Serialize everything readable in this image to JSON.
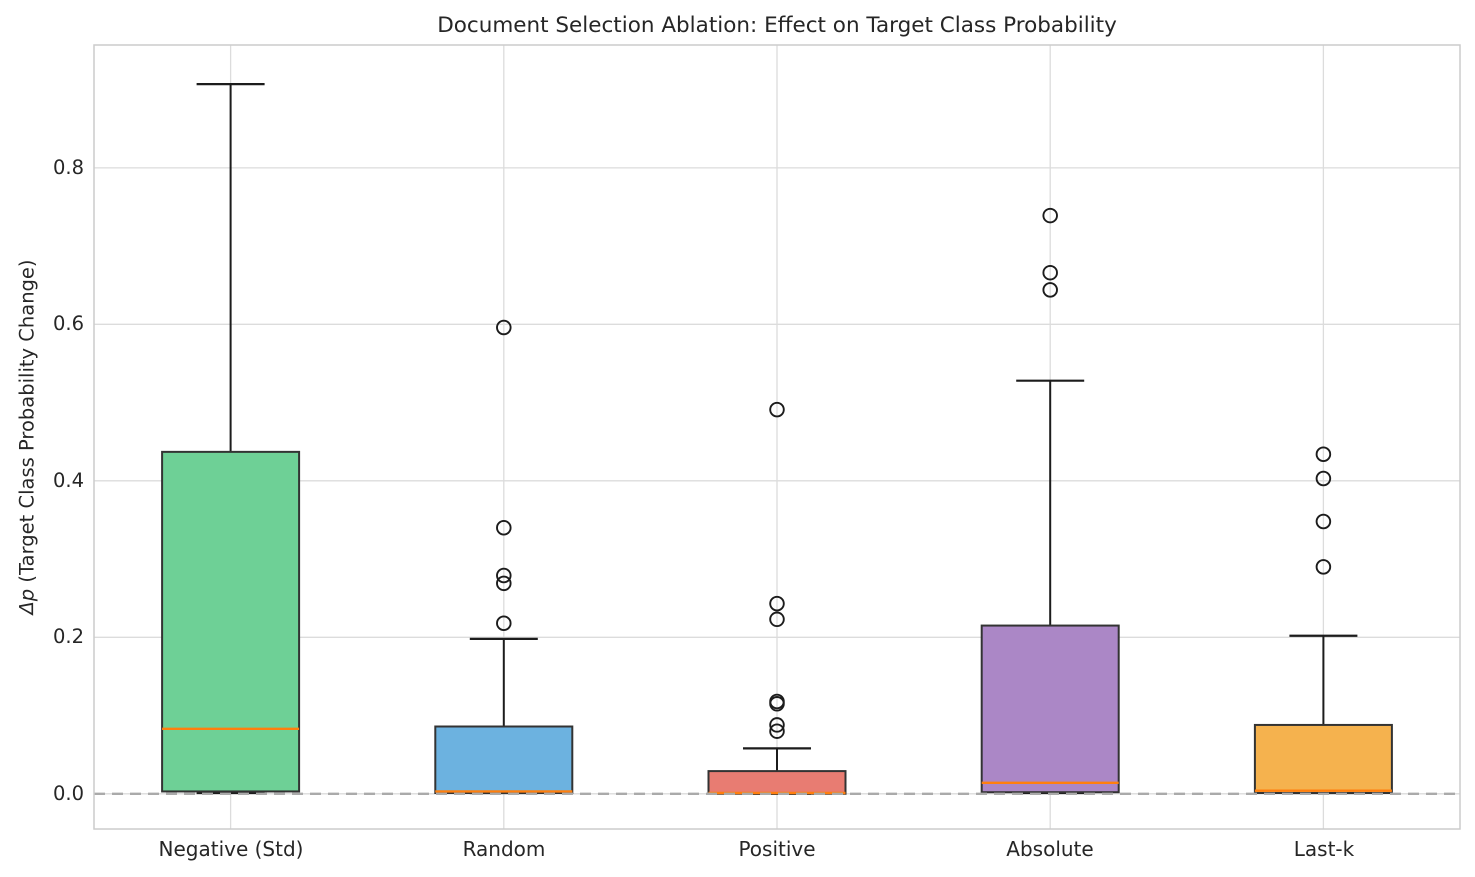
{
  "chart_data": {
    "type": "box",
    "title": "Document Selection Ablation: Effect on Target Class Probability",
    "ylabel_math": "Δp",
    "ylabel_rest": " (Target Class Probability Change)",
    "xlabel": "",
    "categories": [
      "Negative (Std)",
      "Random",
      "Positive",
      "Absolute",
      "Last-k"
    ],
    "ytick_labels": [
      "0.0",
      "0.2",
      "0.4",
      "0.6",
      "0.8"
    ],
    "ytick_values": [
      0.0,
      0.2,
      0.4,
      0.6,
      0.8
    ],
    "ylim": [
      -0.045,
      0.957
    ],
    "grid": true,
    "legend": "none",
    "zero_reference_line": {
      "value": 0.0,
      "style": "dashed",
      "color": "#aaaaaa"
    },
    "boxes": [
      {
        "label": "Negative (Std)",
        "color": "#6ed096",
        "whisker_low": 0.001,
        "q1": 0.003,
        "median": 0.083,
        "q3": 0.437,
        "whisker_high": 0.907,
        "outliers": []
      },
      {
        "label": "Random",
        "color": "#6cb2e0",
        "whisker_low": 0.001,
        "q1": 0.001,
        "median": 0.003,
        "q3": 0.086,
        "whisker_high": 0.198,
        "outliers": [
          0.218,
          0.269,
          0.279,
          0.34,
          0.596
        ]
      },
      {
        "label": "Positive",
        "color": "#e87c72",
        "whisker_low": 0.0,
        "q1": 0.0,
        "median": 0.001,
        "q3": 0.029,
        "whisker_high": 0.058,
        "outliers": [
          0.08,
          0.088,
          0.115,
          0.118,
          0.223,
          0.243,
          0.491
        ]
      },
      {
        "label": "Absolute",
        "color": "#ab87c6",
        "whisker_low": 0.001,
        "q1": 0.002,
        "median": 0.014,
        "q3": 0.215,
        "whisker_high": 0.528,
        "outliers": [
          0.644,
          0.666,
          0.739
        ]
      },
      {
        "label": "Last-k",
        "color": "#f5b24e",
        "whisker_low": 0.001,
        "q1": 0.001,
        "median": 0.004,
        "q3": 0.088,
        "whisker_high": 0.202,
        "outliers": [
          0.29,
          0.348,
          0.403,
          0.434
        ]
      }
    ],
    "colors": {
      "median_line": "#ff7f0e",
      "box_edge": "#333333",
      "whisker": "#1c1c1c",
      "outlier_edge": "#1c1c1c",
      "gridline": "#dcdcdc",
      "spine": "#cccccc",
      "zero_line": "#aaaaaa",
      "text": "#262626"
    }
  }
}
